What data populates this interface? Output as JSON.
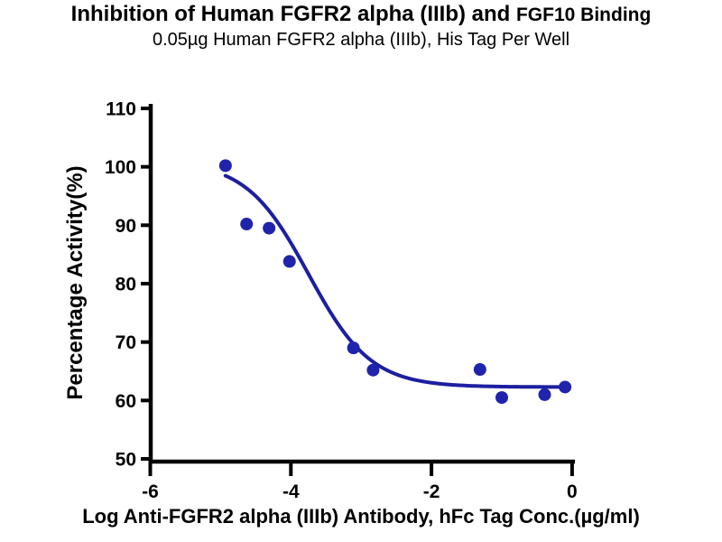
{
  "figure": {
    "title_part1": "Inhibition of Human FGFR2 alpha (IIIb) and ",
    "title_part2": "FGF10 Binding",
    "subtitle": "0.05µg Human FGFR2 alpha (IIIb), His Tag Per Well"
  },
  "chart_data": {
    "type": "scatter",
    "title": "Inhibition of Human FGFR2 alpha (IIIb) and FGF10 Binding",
    "subtitle": "0.05µg Human FGFR2 alpha (IIIb), His Tag Per Well",
    "xlabel": "Log Anti-FGFR2 alpha (IIIb) Antibody, hFc Tag Conc.(µg/ml)",
    "ylabel": "Percentage Activity(%)",
    "xlim": [
      -6,
      0.05
    ],
    "ylim": [
      50,
      110
    ],
    "x_ticks": [
      -6,
      -4,
      -2,
      0
    ],
    "y_ticks": [
      50,
      60,
      70,
      80,
      90,
      100,
      110
    ],
    "grid": false,
    "legend": null,
    "points": [
      {
        "x": -4.93,
        "y": 100.2
      },
      {
        "x": -4.63,
        "y": 90.2
      },
      {
        "x": -4.31,
        "y": 89.5
      },
      {
        "x": -4.02,
        "y": 83.8
      },
      {
        "x": -3.11,
        "y": 69.0
      },
      {
        "x": -2.83,
        "y": 65.2
      },
      {
        "x": -1.31,
        "y": 65.3
      },
      {
        "x": -1.0,
        "y": 60.5
      },
      {
        "x": -0.39,
        "y": 61.0
      },
      {
        "x": -0.1,
        "y": 62.3
      }
    ],
    "fit_curve": {
      "model": "four-parameter logistic inhibition fit",
      "top": 101,
      "bottom": 62.3,
      "log_ic50": -3.75,
      "hill_slope": 0.98,
      "x_start": -4.93,
      "x_end": -0.08
    },
    "colors": {
      "marker": "#2023AB",
      "curve": "#1C1FA0",
      "axis": "#000000",
      "text": "#000000"
    }
  }
}
